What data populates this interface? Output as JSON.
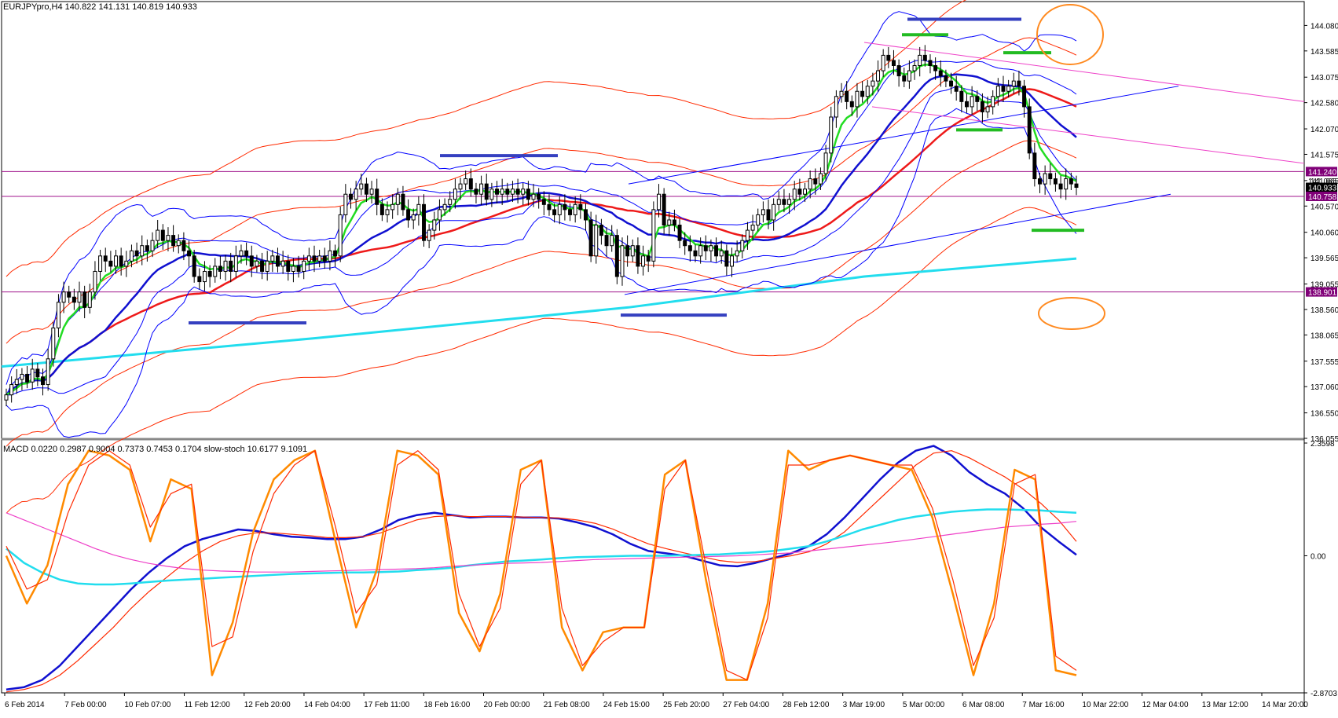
{
  "header": {
    "symbol": "EURJPYpro",
    "timeframe": "H4",
    "ohlc": "140.822 141.131 140.819 140.933",
    "main_label": "EURJPYpro,H4  140.822 141.131 140.819 140.933",
    "sub_label": "MACD 0.0220 0.2987 0.9004 0.7373 0.7453 0.1704  slow-stoch 10.6177 9.1091"
  },
  "colors": {
    "background": "#ffffff",
    "axis": "#000000",
    "bollinger_blue": "#0000ff",
    "ma_blue": "#1010d0",
    "ema_green": "#22dd22",
    "envelope_red": "#ff2a00",
    "ma_red": "#ee1a1a",
    "ma_cyan": "#22ddee",
    "trend_magenta": "#ee40c8",
    "hline_purple": "#a0148c",
    "marker_blue": "#3540c0",
    "marker_green": "#22bb22",
    "ellipse_orange": "#ff8a20",
    "stoch_orange": "#ff8a00",
    "stoch_red": "#ff2a00",
    "macd_blue": "#1010d0",
    "macd_cyan": "#22ddee",
    "macd_magenta": "#ee40c8",
    "price_tag_purple": "#800078",
    "price_tag_black": "#000000"
  },
  "chart_data": [
    {
      "type": "candlestick",
      "title": "EURJPYpro,H4",
      "ylim": [
        136.055,
        144.3
      ],
      "y_ticks": [
        "144.080",
        "143.585",
        "143.075",
        "142.580",
        "142.070",
        "141.575",
        "141.065",
        "140.570",
        "140.060",
        "139.565",
        "139.055",
        "138.560",
        "138.065",
        "137.555",
        "137.060",
        "136.550",
        "136.055"
      ],
      "x_labels": [
        "6 Feb 2014",
        "7 Feb 00:00",
        "10 Feb 07:00",
        "11 Feb 12:00",
        "12 Feb 20:00",
        "14 Feb 04:00",
        "17 Feb 11:00",
        "18 Feb 16:00",
        "20 Feb 00:00",
        "21 Feb 08:00",
        "24 Feb 15:00",
        "25 Feb 20:00",
        "27 Feb 04:00",
        "28 Feb 12:00",
        "3 Mar 19:00",
        "5 Mar 00:00",
        "6 Mar 08:00",
        "7 Mar 16:00",
        "10 Mar 22:00",
        "12 Mar 04:00",
        "13 Mar 12:00",
        "14 Mar 20:00"
      ],
      "price_tags": [
        {
          "label": "141.240",
          "value": 141.24,
          "style": "purple"
        },
        {
          "label": "141.065",
          "value": 141.065,
          "style": "plain"
        },
        {
          "label": "140.933",
          "value": 140.933,
          "style": "black"
        },
        {
          "label": "140.758",
          "value": 140.758,
          "style": "purple"
        },
        {
          "label": "138.901",
          "value": 138.901,
          "style": "purple"
        }
      ],
      "horizontal_lines": [
        141.24,
        140.758,
        138.901
      ],
      "closes": [
        136.9,
        137.1,
        137.2,
        137.3,
        137.15,
        137.4,
        137.25,
        137.1,
        137.6,
        138.2,
        138.7,
        138.9,
        138.8,
        138.7,
        138.9,
        138.6,
        138.9,
        139.3,
        139.6,
        139.5,
        139.4,
        139.6,
        139.4,
        139.5,
        139.7,
        139.6,
        139.8,
        139.7,
        139.9,
        140.1,
        139.9,
        140.0,
        139.8,
        139.9,
        139.7,
        139.6,
        139.2,
        139.1,
        139.3,
        139.2,
        139.4,
        139.3,
        139.5,
        139.3,
        139.6,
        139.7,
        139.6,
        139.4,
        139.5,
        139.3,
        139.5,
        139.6,
        139.4,
        139.5,
        139.3,
        139.4,
        139.3,
        139.5,
        139.6,
        139.5,
        139.6,
        139.5,
        139.7,
        139.6,
        140.4,
        140.8,
        140.7,
        140.9,
        141.0,
        140.8,
        140.9,
        140.6,
        140.4,
        140.5,
        140.6,
        140.8,
        140.5,
        140.3,
        140.4,
        140.6,
        139.9,
        140.1,
        140.3,
        140.5,
        140.6,
        140.7,
        140.9,
        141.0,
        141.1,
        140.9,
        140.8,
        141.0,
        140.7,
        140.9,
        140.8,
        140.9,
        140.8,
        140.9,
        140.8,
        140.9,
        140.7,
        140.8,
        140.7,
        140.6,
        140.5,
        140.4,
        140.6,
        140.5,
        140.4,
        140.6,
        140.5,
        140.3,
        139.6,
        140.2,
        140.0,
        139.8,
        140.0,
        139.2,
        139.8,
        139.6,
        139.8,
        139.4,
        139.6,
        139.5,
        140.5,
        140.8,
        140.2,
        140.3,
        140.2,
        139.9,
        139.8,
        139.7,
        139.6,
        139.8,
        139.7,
        139.8,
        139.6,
        139.7,
        139.4,
        139.6,
        139.7,
        139.9,
        140.1,
        140.2,
        140.4,
        140.5,
        140.3,
        140.6,
        140.7,
        140.6,
        140.7,
        140.9,
        140.8,
        140.9,
        141.1,
        141.0,
        141.2,
        141.6,
        142.3,
        142.7,
        142.8,
        142.6,
        142.5,
        142.8,
        142.7,
        142.9,
        143.0,
        143.2,
        143.5,
        143.4,
        143.3,
        143.1,
        143.0,
        143.2,
        143.3,
        143.5,
        143.4,
        143.3,
        143.2,
        143.1,
        143.0,
        142.9,
        142.8,
        142.6,
        142.5,
        142.7,
        142.6,
        142.4,
        142.5,
        142.7,
        142.9,
        142.8,
        142.9,
        143.0,
        142.9,
        142.5,
        141.6,
        141.1,
        141.0,
        141.2,
        141.1,
        141.0,
        140.9,
        141.1,
        141.0,
        140.933
      ],
      "overlays": [
        "bollinger_bands",
        "envelopes",
        "moving_averages",
        "trendlines"
      ]
    },
    {
      "type": "line",
      "title": "MACD / slow-stoch",
      "ylim": [
        -2.8703,
        2.3598
      ],
      "y_ticks": [
        "2.3598",
        "0.00",
        "-2.8703"
      ],
      "series": [
        {
          "name": "MACD",
          "color": "#1010d0",
          "values": [
            -2.8,
            -2.75,
            -2.6,
            -2.3,
            -1.9,
            -1.5,
            -1.1,
            -0.7,
            -0.35,
            -0.05,
            0.2,
            0.35,
            0.45,
            0.55,
            0.52,
            0.45,
            0.4,
            0.38,
            0.35,
            0.35,
            0.4,
            0.55,
            0.75,
            0.85,
            0.9,
            0.85,
            0.8,
            0.82,
            0.82,
            0.8,
            0.8,
            0.78,
            0.7,
            0.6,
            0.45,
            0.25,
            0.1,
            0.05,
            0.0,
            -0.1,
            -0.2,
            -0.22,
            -0.15,
            -0.05,
            0.05,
            0.2,
            0.45,
            0.8,
            1.2,
            1.6,
            1.95,
            2.2,
            2.3,
            2.1,
            1.75,
            1.5,
            1.3,
            1.0,
            0.6,
            0.3,
            0.02
          ]
        },
        {
          "name": "Signal",
          "color": "#ff2a00",
          "values": [
            -2.85,
            -2.8,
            -2.7,
            -2.5,
            -2.2,
            -1.85,
            -1.5,
            -1.1,
            -0.75,
            -0.45,
            -0.15,
            0.1,
            0.3,
            0.42,
            0.48,
            0.48,
            0.45,
            0.42,
            0.38,
            0.38,
            0.4,
            0.48,
            0.62,
            0.75,
            0.82,
            0.84,
            0.82,
            0.82,
            0.82,
            0.81,
            0.8,
            0.79,
            0.75,
            0.68,
            0.56,
            0.4,
            0.25,
            0.15,
            0.06,
            -0.02,
            -0.1,
            -0.14,
            -0.12,
            -0.06,
            0.0,
            0.08,
            0.25,
            0.5,
            0.85,
            1.2,
            1.55,
            1.9,
            2.15,
            2.2,
            2.05,
            1.85,
            1.65,
            1.4,
            1.1,
            0.75,
            0.3
          ]
        },
        {
          "name": "MA cyan",
          "color": "#22ddee",
          "values": [
            0.15,
            -0.15,
            -0.35,
            -0.5,
            -0.58,
            -0.6,
            -0.6,
            -0.58,
            -0.55,
            -0.52,
            -0.5,
            -0.48,
            -0.46,
            -0.44,
            -0.42,
            -0.4,
            -0.38,
            -0.37,
            -0.36,
            -0.35,
            -0.35,
            -0.34,
            -0.33,
            -0.3,
            -0.28,
            -0.25,
            -0.2,
            -0.16,
            -0.12,
            -0.1,
            -0.08,
            -0.05,
            -0.03,
            -0.02,
            -0.01,
            0.0,
            0.0,
            0.0,
            0.01,
            0.02,
            0.03,
            0.05,
            0.07,
            0.1,
            0.15,
            0.2,
            0.3,
            0.42,
            0.55,
            0.65,
            0.75,
            0.82,
            0.87,
            0.92,
            0.95,
            0.97,
            0.97,
            0.96,
            0.95,
            0.92,
            0.9
          ]
        },
        {
          "name": "MA magenta",
          "color": "#ee40c8",
          "values": [
            0.9,
            0.75,
            0.6,
            0.45,
            0.3,
            0.15,
            0.02,
            -0.08,
            -0.16,
            -0.22,
            -0.27,
            -0.3,
            -0.32,
            -0.33,
            -0.34,
            -0.34,
            -0.34,
            -0.33,
            -0.32,
            -0.31,
            -0.3,
            -0.29,
            -0.28,
            -0.27,
            -0.25,
            -0.22,
            -0.2,
            -0.18,
            -0.16,
            -0.15,
            -0.14,
            -0.12,
            -0.1,
            -0.08,
            -0.07,
            -0.06,
            -0.05,
            -0.04,
            -0.03,
            -0.02,
            -0.01,
            0.0,
            0.02,
            0.04,
            0.06,
            0.1,
            0.14,
            0.18,
            0.22,
            0.26,
            0.3,
            0.35,
            0.4,
            0.45,
            0.5,
            0.55,
            0.6,
            0.63,
            0.66,
            0.68,
            0.72
          ]
        },
        {
          "name": "slow-stoch %K",
          "color": "#ff8a00",
          "values": [
            0.0,
            -1.0,
            -0.2,
            1.5,
            2.2,
            2.1,
            1.8,
            0.3,
            1.6,
            1.4,
            -2.5,
            -1.4,
            0.5,
            1.6,
            2.0,
            2.2,
            0.3,
            -1.5,
            -0.3,
            2.2,
            2.1,
            1.7,
            -1.2,
            -2.0,
            -0.8,
            1.8,
            2.0,
            -1.5,
            -2.4,
            -1.6,
            -1.5,
            -1.5,
            1.7,
            2.0,
            -0.5,
            -2.6,
            -2.6,
            -1.0,
            2.2,
            1.8,
            2.0,
            2.1,
            2.0,
            1.9,
            1.8,
            0.8,
            -0.8,
            -2.5,
            -1.0,
            1.8,
            1.6,
            -2.4,
            -2.5
          ]
        },
        {
          "name": "slow-stoch %D",
          "color": "#ff2a00",
          "values": [
            0.2,
            -0.7,
            -0.5,
            0.9,
            1.9,
            2.2,
            1.9,
            0.6,
            1.3,
            1.5,
            -1.9,
            -1.7,
            0.1,
            1.3,
            1.9,
            2.2,
            0.6,
            -1.2,
            -0.6,
            1.9,
            2.2,
            1.8,
            -0.8,
            -1.9,
            -1.1,
            1.5,
            2.0,
            -1.1,
            -2.3,
            -1.8,
            -1.5,
            -1.5,
            1.4,
            2.0,
            -0.2,
            -2.4,
            -2.6,
            -1.3,
            1.9,
            1.9,
            2.0,
            2.1,
            2.0,
            1.9,
            1.9,
            1.0,
            -0.5,
            -2.3,
            -1.3,
            1.5,
            1.7,
            -2.1,
            -2.4
          ]
        }
      ]
    }
  ]
}
